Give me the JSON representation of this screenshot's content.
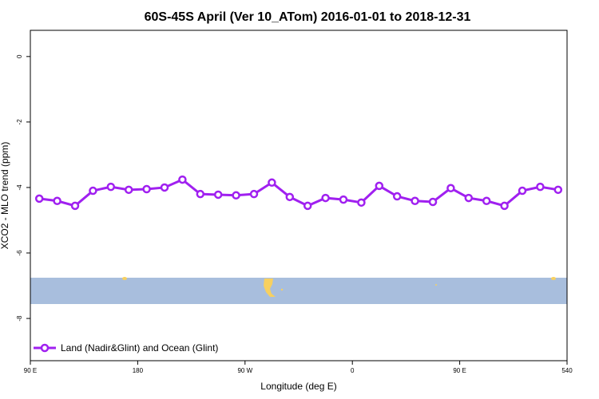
{
  "chart_data": {
    "type": "line",
    "title": "60S-45S April (Ver 10_ATom)   2016-01-01 to 2018-12-31",
    "x_label": "Longitude (deg E)",
    "y_label": "XCO2 - MLO trend (ppm)",
    "x": [
      97.5,
      112.5,
      127.5,
      142.5,
      157.5,
      172.5,
      187.5,
      202.5,
      217.5,
      232.5,
      247.5,
      262.5,
      277.5,
      292.5,
      307.5,
      322.5,
      337.5,
      352.5,
      367.5,
      382.5,
      397.5,
      412.5,
      427.5,
      442.5,
      457.5,
      472.5,
      487.5,
      502.5,
      517.5,
      532.5
    ],
    "series": [
      {
        "name": "Land (Nadir&Glint) and Ocean (Glint)",
        "color": "#a020f0",
        "values": [
          -4.34,
          -4.41,
          -4.56,
          -4.1,
          -3.98,
          -4.07,
          -4.05,
          -4.0,
          -3.76,
          -4.2,
          -4.22,
          -4.24,
          -4.2,
          -3.85,
          -4.29,
          -4.56,
          -4.32,
          -4.37,
          -4.46,
          -3.95,
          -4.27,
          -4.41,
          -4.44,
          -4.02,
          -4.32,
          -4.41,
          -4.56,
          -4.1,
          -3.98,
          -4.07
        ]
      }
    ],
    "xlim": [
      90,
      540
    ],
    "xticks": [
      {
        "value": 90,
        "label": "90 E"
      },
      180,
      {
        "value": 270,
        "label": "90 W"
      },
      {
        "value": 360,
        "label": "0"
      },
      {
        "value": 450,
        "label": "90 E"
      },
      540
    ],
    "ylim": [
      -9.29,
      0.8
    ],
    "yticks": [
      0,
      -2,
      -4,
      -6,
      -8
    ],
    "legend": "bottom-left"
  }
}
